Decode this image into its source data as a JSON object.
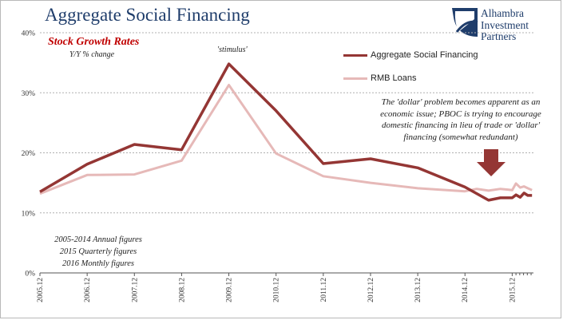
{
  "title": "Aggregate Social Financing",
  "logo": {
    "line1": "Alhambra",
    "line2": "Investment",
    "line3": "Partners"
  },
  "subtitle": "Stock Growth Rates",
  "yy_label": "Y/Y % change",
  "stimulus_label": "'stimulus'",
  "note": "The 'dollar' problem becomes apparent as an economic issue; PBOC is trying to encourage domestic financing in lieu of trade or 'dollar' financing (somewhat redundant)",
  "figures_note": {
    "line1": "2005-2014 Annual figures",
    "line2": "2015 Quarterly figures",
    "line3": "2016 Monthly figures"
  },
  "colors": {
    "asf": "#943634",
    "rmb": "#e6b9b8",
    "title": "#1f3d6b",
    "subtitle": "#c00000",
    "arrow": "#943634"
  },
  "chart_data": {
    "type": "line",
    "title": "Aggregate Social Financing",
    "subtitle": "Stock Growth Rates",
    "ylabel": "Y/Y % change",
    "ylim": [
      0,
      40
    ],
    "yticks": [
      "0%",
      "10%",
      "20%",
      "30%",
      "40%"
    ],
    "xticks": [
      "2005.12",
      "2006.12",
      "2007.12",
      "2008.12",
      "2009.12",
      "2010.12",
      "2011.12",
      "2012.12",
      "2013.12",
      "2014.12",
      "2015.12"
    ],
    "grid": true,
    "legend_position": "top-right",
    "series": [
      {
        "name": "Aggregate Social Financing",
        "color": "#943634",
        "points": [
          [
            2005.0,
            13.5
          ],
          [
            2006.0,
            18.1
          ],
          [
            2007.0,
            21.4
          ],
          [
            2008.0,
            20.5
          ],
          [
            2009.0,
            34.8
          ],
          [
            2010.0,
            27.0
          ],
          [
            2011.0,
            18.2
          ],
          [
            2012.0,
            19.0
          ],
          [
            2013.0,
            17.5
          ],
          [
            2014.0,
            14.3
          ],
          [
            2014.5,
            12.1
          ],
          [
            2014.75,
            12.5
          ],
          [
            2015.0,
            12.5
          ],
          [
            2015.08,
            13.0
          ],
          [
            2015.17,
            12.6
          ],
          [
            2015.25,
            13.3
          ],
          [
            2015.33,
            12.9
          ],
          [
            2015.42,
            12.9
          ]
        ]
      },
      {
        "name": "RMB Loans",
        "color": "#e6b9b8",
        "points": [
          [
            2005.0,
            13.2
          ],
          [
            2006.0,
            16.3
          ],
          [
            2007.0,
            16.4
          ],
          [
            2008.0,
            18.7
          ],
          [
            2009.0,
            31.3
          ],
          [
            2010.0,
            19.9
          ],
          [
            2011.0,
            16.1
          ],
          [
            2012.0,
            15.0
          ],
          [
            2013.0,
            14.1
          ],
          [
            2014.0,
            13.6
          ],
          [
            2014.25,
            14.0
          ],
          [
            2014.5,
            13.7
          ],
          [
            2014.75,
            14.0
          ],
          [
            2015.0,
            13.8
          ],
          [
            2015.08,
            14.9
          ],
          [
            2015.17,
            14.2
          ],
          [
            2015.25,
            14.4
          ],
          [
            2015.33,
            14.1
          ],
          [
            2015.42,
            13.8
          ]
        ]
      }
    ]
  }
}
